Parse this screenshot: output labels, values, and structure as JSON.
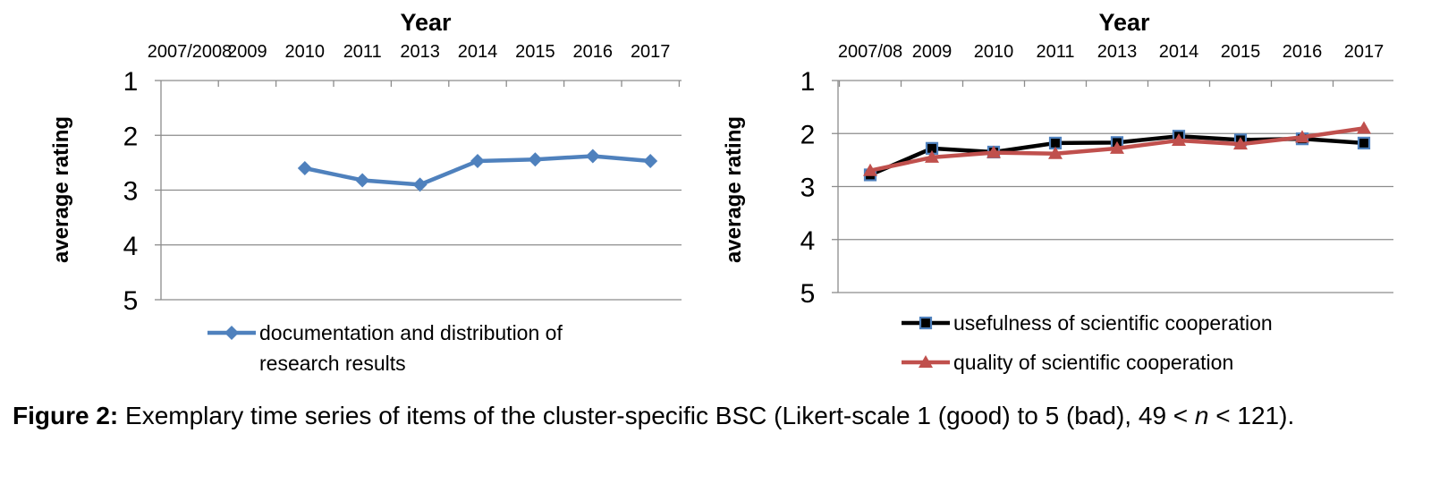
{
  "chart_data": [
    {
      "type": "line",
      "xlabel": "Year",
      "ylabel": "average rating",
      "categories": [
        "2007/2008",
        "2009",
        "2010",
        "2011",
        "2013",
        "2014",
        "2015",
        "2016",
        "2017"
      ],
      "yticks": [
        "1",
        "2",
        "3",
        "4",
        "5"
      ],
      "ylim": [
        1,
        5
      ],
      "y_inverted": true,
      "x_axis_position": "top",
      "grid": true,
      "legend_position": "bottom",
      "series": [
        {
          "name": "documentation and distribution of research results",
          "color": "#4F81BD",
          "marker": "diamond",
          "values": [
            null,
            null,
            2.6,
            2.82,
            2.9,
            2.47,
            2.44,
            2.38,
            2.47
          ]
        }
      ]
    },
    {
      "type": "line",
      "xlabel": "Year",
      "ylabel": "average rating",
      "categories": [
        "2007/08",
        "2009",
        "2010",
        "2011",
        "2013",
        "2014",
        "2015",
        "2016",
        "2017"
      ],
      "yticks": [
        "1",
        "2",
        "3",
        "4",
        "5"
      ],
      "ylim": [
        1,
        5
      ],
      "y_inverted": true,
      "x_axis_position": "top",
      "grid": true,
      "legend_position": "bottom",
      "series": [
        {
          "name": "usefulness of scientific cooperation",
          "color": "#000000",
          "marker": "square",
          "marker_color": "#4F81BD",
          "values": [
            2.78,
            2.28,
            2.35,
            2.18,
            2.17,
            2.05,
            2.12,
            2.1,
            2.18
          ]
        },
        {
          "name": "quality of scientific cooperation",
          "color": "#C0504D",
          "marker": "triangle",
          "values": [
            2.7,
            2.45,
            2.36,
            2.38,
            2.28,
            2.13,
            2.2,
            2.07,
            1.9
          ]
        }
      ]
    }
  ],
  "caption": {
    "label": "Figure 2:",
    "text_before_n": " Exemplary time series of items of the cluster-specific BSC (Likert-scale 1 (good) to 5 (bad), 49 < ",
    "n": "n",
    "text_after_n": " < 121)."
  }
}
